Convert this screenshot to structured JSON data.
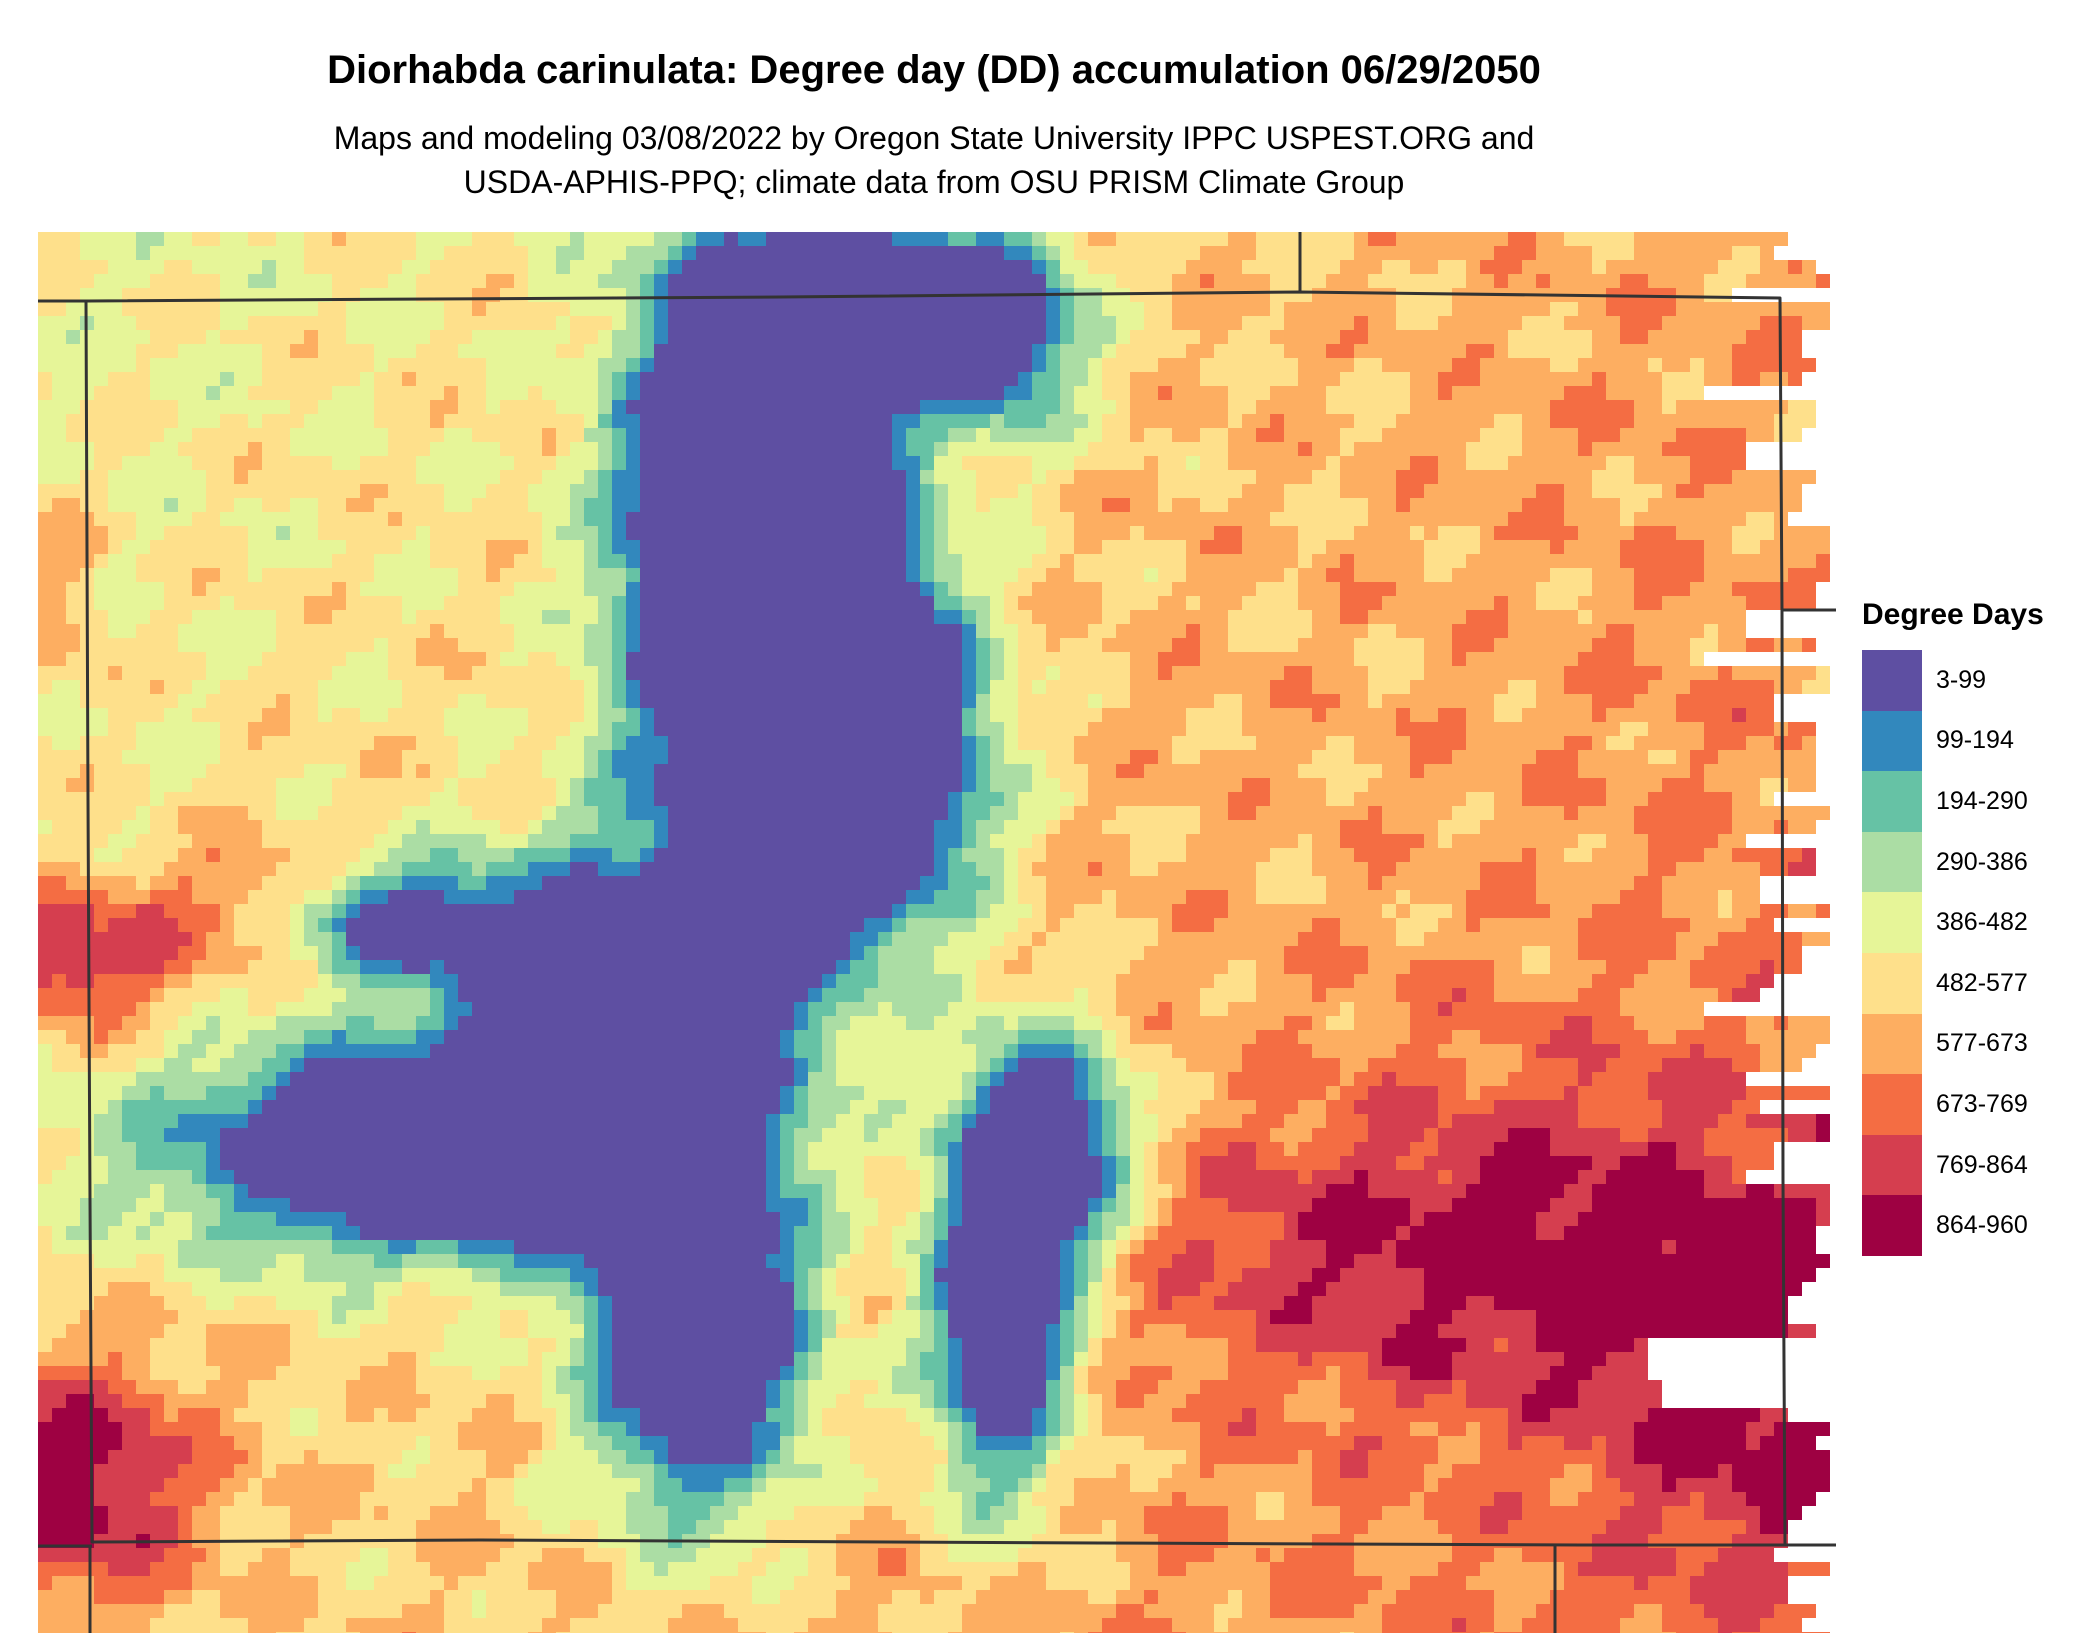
{
  "header": {
    "title": "Diorhabda carinulata: Degree day (DD) accumulation 06/29/2050",
    "subtitle_line1": "Maps and modeling 03/08/2022 by Oregon State University IPPC USPEST.ORG and",
    "subtitle_line2": "USDA-APHIS-PPQ; climate data from OSU PRISM Climate Group"
  },
  "legend": {
    "title": "Degree Days",
    "classes": [
      {
        "label": "3-99",
        "color": "#5e4fa2"
      },
      {
        "label": "99-194",
        "color": "#3288bd"
      },
      {
        "label": "194-290",
        "color": "#66c2a5"
      },
      {
        "label": "290-386",
        "color": "#abdda4"
      },
      {
        "label": "386-482",
        "color": "#e6f598"
      },
      {
        "label": "482-577",
        "color": "#fee08b"
      },
      {
        "label": "577-673",
        "color": "#fdae61"
      },
      {
        "label": "673-769",
        "color": "#f46d43"
      },
      {
        "label": "769-864",
        "color": "#d53e4f"
      },
      {
        "label": "864-960",
        "color": "#9e0142"
      }
    ]
  },
  "map": {
    "boundary_color": "#333333"
  }
}
